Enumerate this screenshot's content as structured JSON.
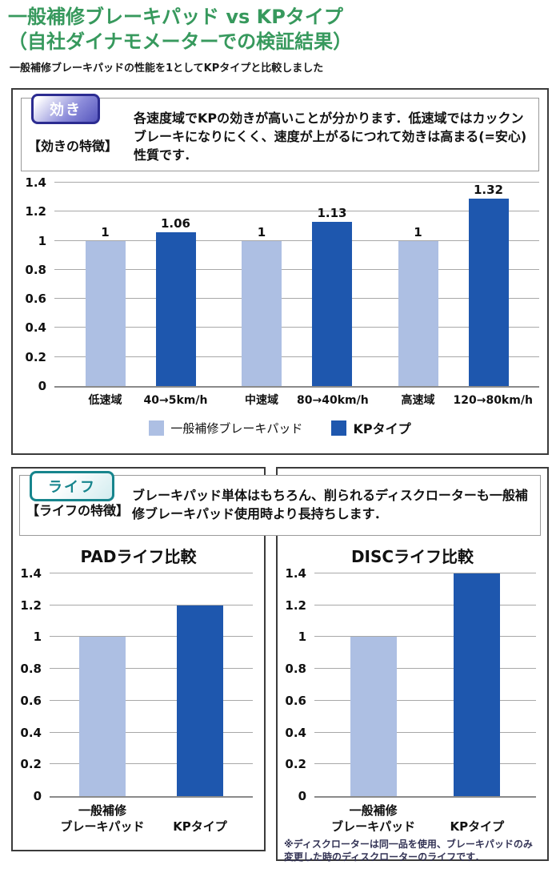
{
  "colors": {
    "title_green": "#37995d",
    "bar_standard": "#adbfe3",
    "bar_kp": "#1e57ae",
    "grid": "#a8a8a8",
    "box_border": "#3b3b3b",
    "effect_badge": "#2c2c91",
    "life_badge": "#17858d",
    "footnote": "#333355"
  },
  "header": {
    "title_line1": "一般補修ブレーキパッド vs KPタイプ",
    "title_line2": "（自社ダイナモメーターでの検証結果）",
    "subtitle": "一般補修ブレーキパッドの性能を1としてKPタイプと比較しました"
  },
  "effect": {
    "badge": "効き",
    "feature_label": "【効きの特徴】",
    "feature_text": "各速度域でKPの効きが高いことが分かります．低速域ではカックンブレーキになりにくく、速度が上がるにつれて効きは高まる(=安心)性質です．"
  },
  "life": {
    "badge": "ライフ",
    "feature_label": "【ライフの特徴】",
    "feature_text": "ブレーキパッド単体はもちろん、削られるディスクローターも一般補修ブレーキパッド使用時より長持ちします．"
  },
  "chart_data": [
    {
      "id": "effect",
      "type": "bar",
      "title": "",
      "ylim": [
        0,
        1.4
      ],
      "grid": true,
      "yticks": [
        {
          "v": 1.4,
          "label": "1.4"
        },
        {
          "v": 1.2,
          "label": "1.2"
        },
        {
          "v": 1,
          "label": "1"
        },
        {
          "v": 0.8,
          "label": "0.8"
        },
        {
          "v": 0.6,
          "label": "0.6"
        },
        {
          "v": 0.4,
          "label": "0.4"
        },
        {
          "v": 0.2,
          "label": "0.2"
        },
        {
          "v": 0,
          "label": "0"
        }
      ],
      "groups": [
        [
          {
            "label": "低速域",
            "value": 1,
            "value_label": "1",
            "series": "standard"
          },
          {
            "label": "40→5km/h",
            "value": 1.06,
            "value_label": "1.06",
            "series": "kp"
          }
        ],
        [
          {
            "label": "中速域",
            "value": 1,
            "value_label": "1",
            "series": "standard"
          },
          {
            "label": "80→40km/h",
            "value": 1.13,
            "value_label": "1.13",
            "series": "kp"
          }
        ],
        [
          {
            "label": "高速域",
            "value": 1,
            "value_label": "1",
            "series": "standard"
          },
          {
            "label": "120→80km/h",
            "value": 1.32,
            "value_label": "1.32",
            "series": "kp"
          }
        ]
      ],
      "legend": [
        {
          "series": "standard",
          "label": "一般補修ブレーキパッド"
        },
        {
          "series": "kp",
          "label": "KPタイプ"
        }
      ],
      "legend_position": "bottom"
    },
    {
      "id": "pad",
      "type": "bar",
      "title": "PADライフ比較",
      "ylim": [
        0,
        1.4
      ],
      "grid": true,
      "yticks": [
        {
          "v": 1.4,
          "label": "1.4"
        },
        {
          "v": 1.2,
          "label": "1.2"
        },
        {
          "v": 1,
          "label": "1"
        },
        {
          "v": 0.8,
          "label": "0.8"
        },
        {
          "v": 0.6,
          "label": "0.6"
        },
        {
          "v": 0.4,
          "label": "0.4"
        },
        {
          "v": 0.2,
          "label": "0.2"
        },
        {
          "v": 0,
          "label": "0"
        }
      ],
      "groups": [
        [
          {
            "label": "一般補修\nブレーキパッド",
            "value": 1,
            "series": "standard"
          }
        ],
        [
          {
            "label": "KPタイプ",
            "value": 1.2,
            "series": "kp"
          }
        ]
      ]
    },
    {
      "id": "disc",
      "type": "bar",
      "title": "DISCライフ比較",
      "ylim": [
        0,
        1.4
      ],
      "grid": true,
      "yticks": [
        {
          "v": 1.4,
          "label": "1.4"
        },
        {
          "v": 1.2,
          "label": "1.2"
        },
        {
          "v": 1,
          "label": "1"
        },
        {
          "v": 0.8,
          "label": "0.8"
        },
        {
          "v": 0.6,
          "label": "0.6"
        },
        {
          "v": 0.4,
          "label": "0.4"
        },
        {
          "v": 0.2,
          "label": "0.2"
        },
        {
          "v": 0,
          "label": "0"
        }
      ],
      "groups": [
        [
          {
            "label": "一般補修\nブレーキパッド",
            "value": 1,
            "series": "standard"
          }
        ],
        [
          {
            "label": "KPタイプ",
            "value": 1.4,
            "series": "kp"
          }
        ]
      ],
      "footnote": "※ディスクローターは同一品を使用、ブレーキパッドのみ変更した時のディスクローターのライフです．"
    }
  ]
}
